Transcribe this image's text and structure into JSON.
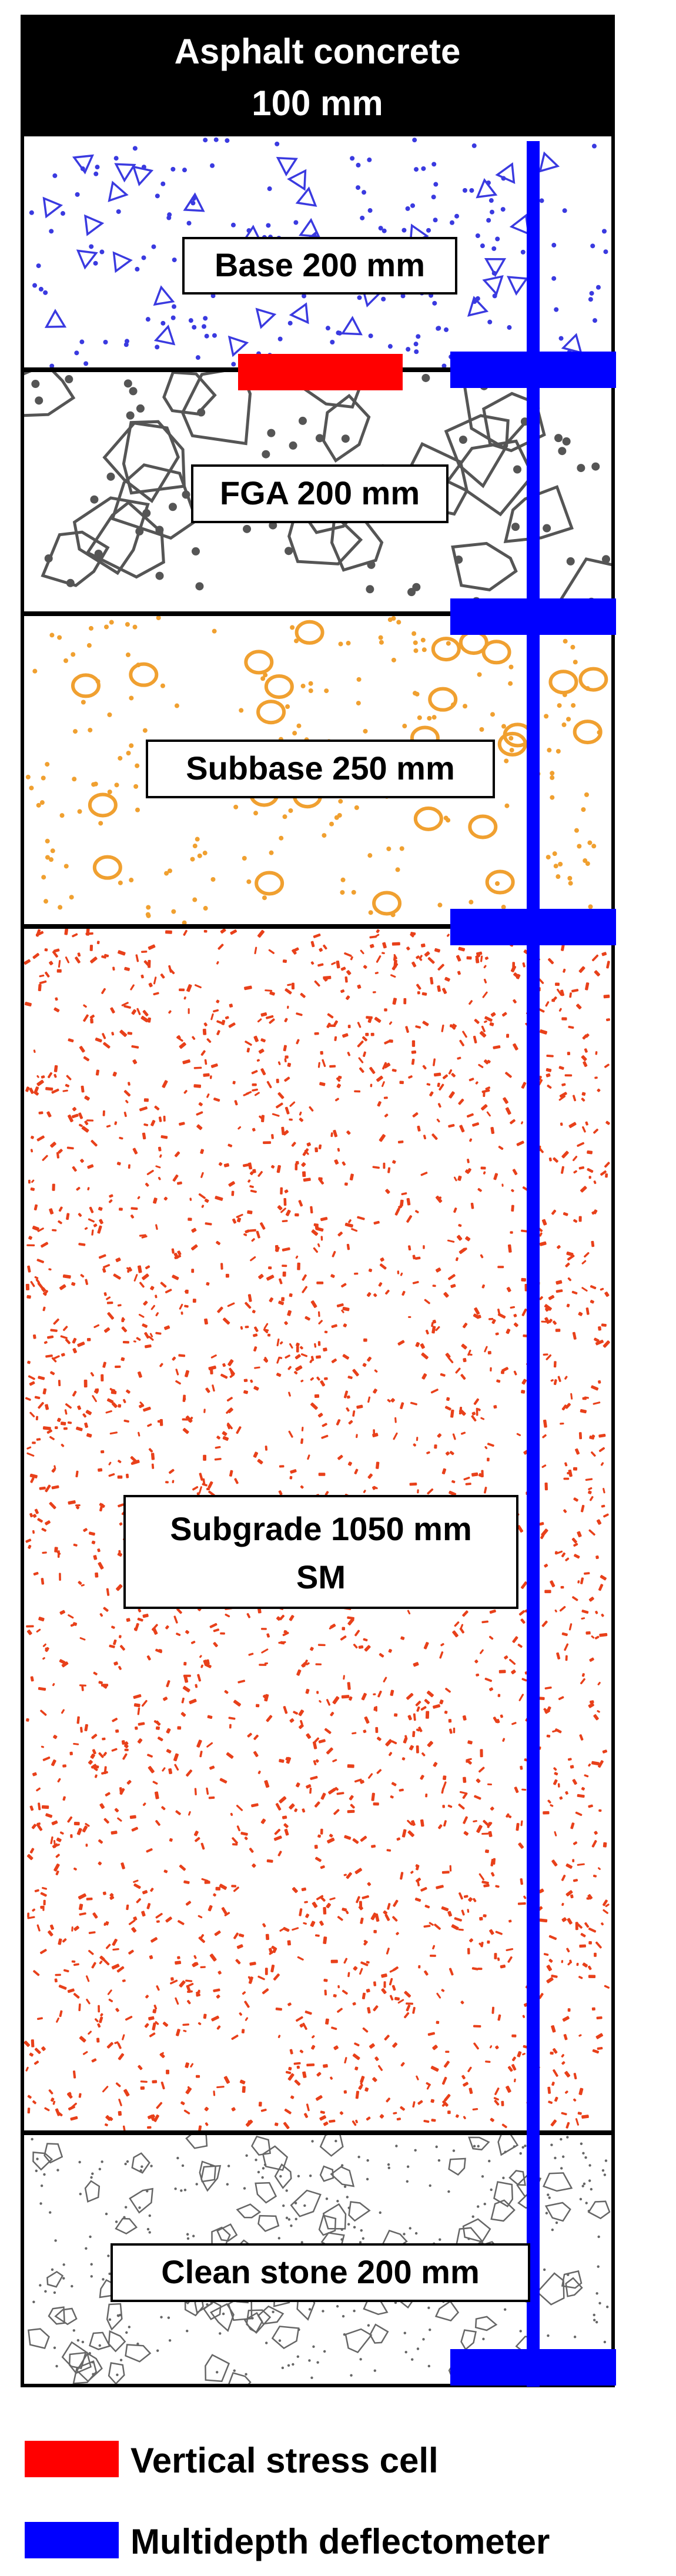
{
  "header": {
    "line1": "Asphalt concrete",
    "line2": "100 mm"
  },
  "layers": {
    "base": {
      "label": "Base 200 mm",
      "color": "#3a3ae0"
    },
    "fga": {
      "label": "FGA 200 mm",
      "color": "#555555"
    },
    "subbase": {
      "label": "Subbase 250 mm",
      "color": "#f0a030"
    },
    "subgrade": {
      "line1": "Subgrade 1050 mm",
      "line2": "SM",
      "color": "#e8401a"
    },
    "clean_stone": {
      "label": "Clean stone 200 mm",
      "color": "#666666"
    }
  },
  "legend": {
    "stress_cell": {
      "label": "Vertical stress cell",
      "color": "#ff0000"
    },
    "deflectometer": {
      "label": "Multidepth deflectometer",
      "color": "#0000ff"
    }
  }
}
